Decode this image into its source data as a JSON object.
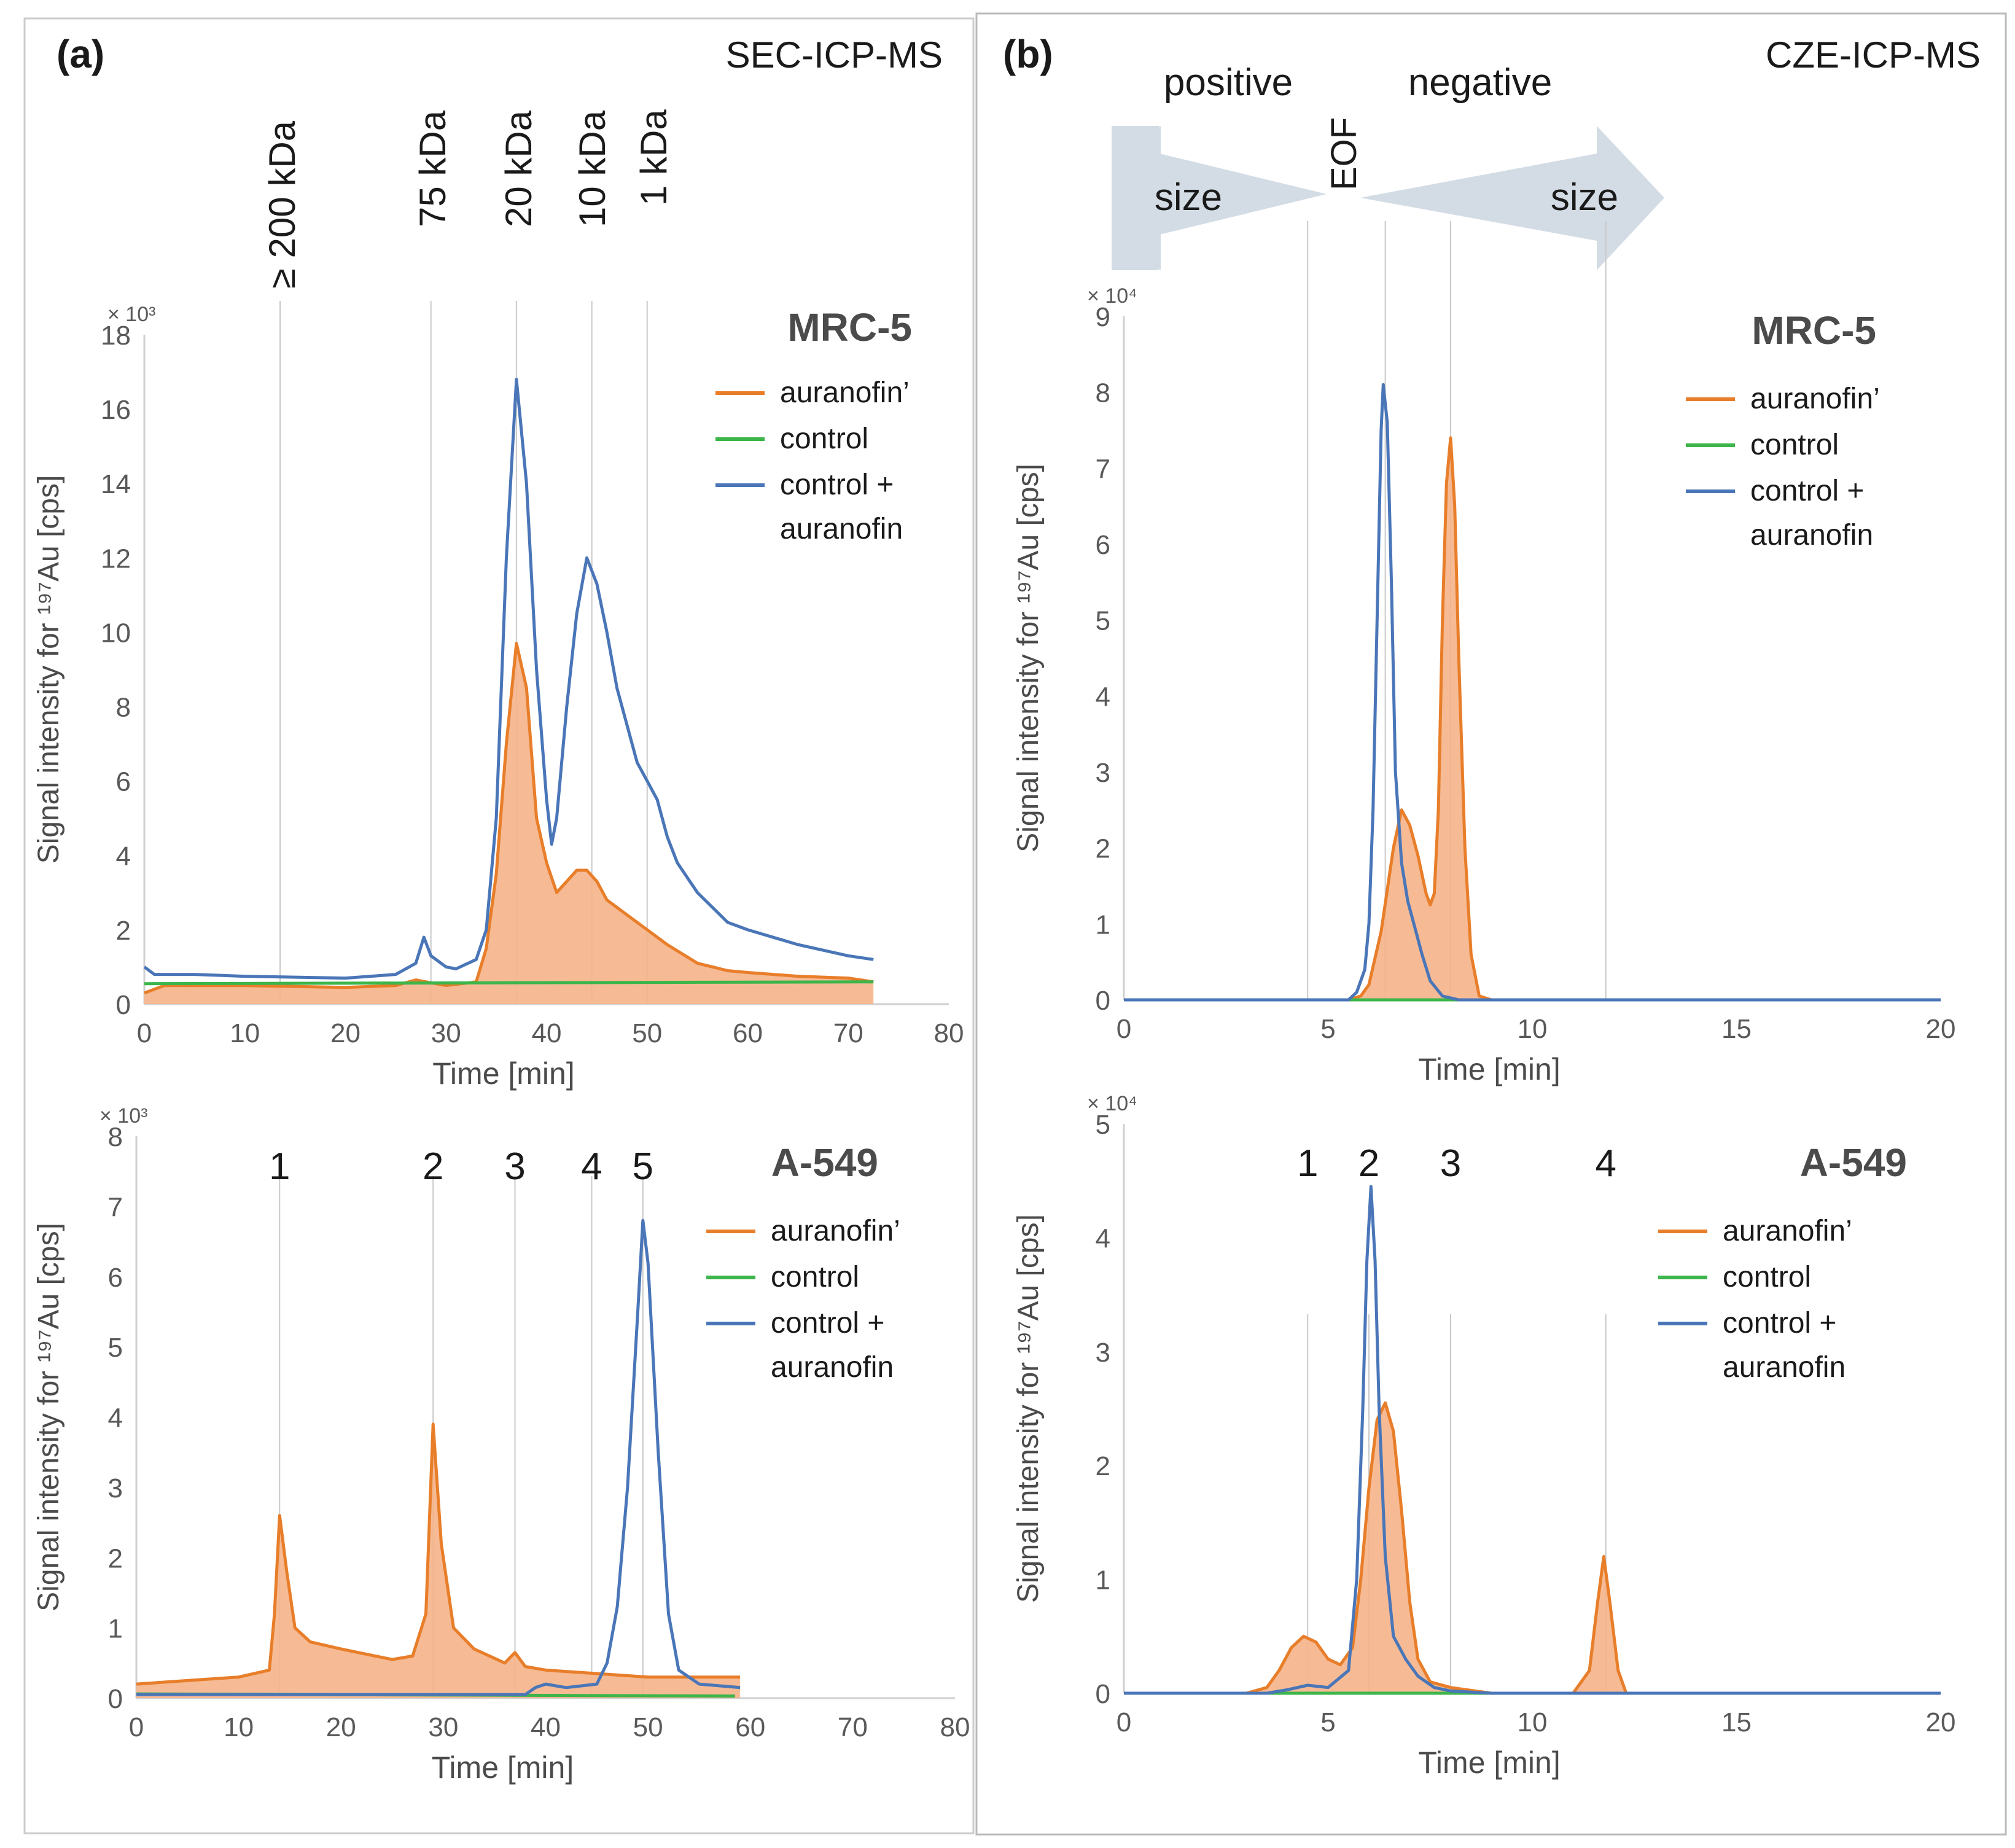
{
  "colors": {
    "orange": "#E87E2A",
    "orange_fill": "#F5B48A",
    "green": "#3CB54A",
    "blue": "#4A76B8",
    "grid": "#C9C9C9",
    "axis": "#D0D0D0",
    "text": "#1A1A1A",
    "tick": "#595959",
    "bold": "#4B4B4B",
    "arrow": "#D3DCE5"
  },
  "labels": {
    "panel_a": "(a)",
    "panel_b": "(b)",
    "method_a": "SEC-ICP-MS",
    "method_b": "CZE-ICP-MS",
    "positive": "positive",
    "negative": "negative",
    "eof": "EOF",
    "size": "size",
    "mw": [
      "≥ 200 kDa",
      "75 kDa",
      "20 kDa",
      "10 kDa",
      "1 kDa"
    ]
  },
  "chart_data": [
    {
      "id": "a_mrc5",
      "type": "line",
      "cell": "MRC-5",
      "method": "SEC-ICP-MS",
      "multiplier": "× 10³",
      "xlabel": "Time [min]",
      "ylabel": "Signal intensity for ¹⁹⁷Au [cps]",
      "xlim": [
        0,
        80
      ],
      "ylim": [
        0,
        18
      ],
      "xticks": [
        0,
        10,
        20,
        30,
        40,
        50,
        60,
        70,
        80
      ],
      "yticks": [
        0,
        2,
        4,
        6,
        8,
        10,
        12,
        14,
        16,
        18
      ],
      "vlines": [
        13.5,
        28.5,
        37,
        44.5,
        50
      ],
      "peak_numbers": [],
      "legend": [
        "auranofin’",
        "control",
        "control + auranofin"
      ],
      "series": [
        {
          "name": "auranofin’",
          "color": "orange",
          "fill": true,
          "points": [
            [
              0,
              0.3
            ],
            [
              2,
              0.5
            ],
            [
              10,
              0.5
            ],
            [
              20,
              0.45
            ],
            [
              25,
              0.5
            ],
            [
              27,
              0.65
            ],
            [
              28,
              0.6
            ],
            [
              30,
              0.5
            ],
            [
              33,
              0.6
            ],
            [
              34,
              1.5
            ],
            [
              35,
              3.5
            ],
            [
              36,
              7.0
            ],
            [
              37,
              9.7
            ],
            [
              38,
              8.5
            ],
            [
              39,
              5.0
            ],
            [
              40,
              3.8
            ],
            [
              41,
              3.0
            ],
            [
              42,
              3.3
            ],
            [
              43,
              3.6
            ],
            [
              44,
              3.6
            ],
            [
              45,
              3.3
            ],
            [
              46,
              2.8
            ],
            [
              48,
              2.4
            ],
            [
              50,
              2.0
            ],
            [
              52,
              1.6
            ],
            [
              55,
              1.1
            ],
            [
              58,
              0.9
            ],
            [
              60,
              0.85
            ],
            [
              65,
              0.75
            ],
            [
              70,
              0.7
            ],
            [
              72.5,
              0.6
            ]
          ]
        },
        {
          "name": "control",
          "color": "green",
          "fill": false,
          "points": [
            [
              0,
              0.55
            ],
            [
              72.5,
              0.6
            ]
          ]
        },
        {
          "name": "control + auranofin",
          "color": "blue",
          "fill": false,
          "points": [
            [
              0,
              1.0
            ],
            [
              1,
              0.8
            ],
            [
              5,
              0.8
            ],
            [
              10,
              0.75
            ],
            [
              20,
              0.7
            ],
            [
              25,
              0.8
            ],
            [
              27,
              1.1
            ],
            [
              27.8,
              1.8
            ],
            [
              28.5,
              1.3
            ],
            [
              30,
              1.0
            ],
            [
              31,
              0.95
            ],
            [
              33,
              1.2
            ],
            [
              34,
              2.0
            ],
            [
              35,
              5.0
            ],
            [
              36,
              12.0
            ],
            [
              37,
              16.8
            ],
            [
              38,
              14.0
            ],
            [
              39,
              9.0
            ],
            [
              40,
              5.5
            ],
            [
              40.5,
              4.3
            ],
            [
              41,
              5.0
            ],
            [
              42,
              8.0
            ],
            [
              43,
              10.5
            ],
            [
              44,
              12.0
            ],
            [
              45,
              11.3
            ],
            [
              46,
              10.0
            ],
            [
              47,
              8.5
            ],
            [
              48,
              7.5
            ],
            [
              49,
              6.5
            ],
            [
              50,
              6.0
            ],
            [
              51,
              5.5
            ],
            [
              52,
              4.5
            ],
            [
              53,
              3.8
            ],
            [
              55,
              3.0
            ],
            [
              58,
              2.2
            ],
            [
              60,
              2.0
            ],
            [
              65,
              1.6
            ],
            [
              70,
              1.3
            ],
            [
              72.5,
              1.2
            ]
          ]
        }
      ]
    },
    {
      "id": "a_a549",
      "type": "line",
      "cell": "A-549",
      "method": "SEC-ICP-MS",
      "multiplier": "× 10³",
      "xlabel": "Time [min]",
      "ylabel": "Signal intensity for ¹⁹⁷Au [cps]",
      "xlim": [
        0,
        80
      ],
      "ylim": [
        0,
        8
      ],
      "xticks": [
        0,
        10,
        20,
        30,
        40,
        50,
        60,
        70,
        80
      ],
      "yticks": [
        0,
        1,
        2,
        3,
        4,
        5,
        6,
        7,
        8
      ],
      "vlines": [
        14,
        29,
        37,
        44.5,
        49.5
      ],
      "peak_numbers": [
        "1",
        "2",
        "3",
        "4",
        "5"
      ],
      "legend": [
        "auranofin’",
        "control",
        "control + auranofin"
      ],
      "series": [
        {
          "name": "auranofin’",
          "color": "orange",
          "fill": true,
          "points": [
            [
              0,
              0.2
            ],
            [
              5,
              0.25
            ],
            [
              10,
              0.3
            ],
            [
              13,
              0.4
            ],
            [
              13.5,
              1.2
            ],
            [
              14,
              2.6
            ],
            [
              14.7,
              1.8
            ],
            [
              15.5,
              1.0
            ],
            [
              17,
              0.8
            ],
            [
              20,
              0.7
            ],
            [
              25,
              0.55
            ],
            [
              27,
              0.6
            ],
            [
              28.3,
              1.2
            ],
            [
              29,
              3.9
            ],
            [
              29.8,
              2.2
            ],
            [
              31,
              1.0
            ],
            [
              33,
              0.7
            ],
            [
              36,
              0.5
            ],
            [
              37,
              0.65
            ],
            [
              38,
              0.45
            ],
            [
              40,
              0.4
            ],
            [
              45,
              0.35
            ],
            [
              50,
              0.3
            ],
            [
              55,
              0.3
            ],
            [
              59,
              0.3
            ]
          ]
        },
        {
          "name": "control",
          "color": "green",
          "fill": false,
          "points": [
            [
              0,
              0.06
            ],
            [
              58.5,
              0.03
            ]
          ]
        },
        {
          "name": "control + auranofin",
          "color": "blue",
          "fill": false,
          "points": [
            [
              0,
              0.05
            ],
            [
              38,
              0.05
            ],
            [
              39,
              0.15
            ],
            [
              40,
              0.2
            ],
            [
              42,
              0.15
            ],
            [
              45,
              0.2
            ],
            [
              46,
              0.5
            ],
            [
              47,
              1.3
            ],
            [
              48,
              3.0
            ],
            [
              49,
              5.5
            ],
            [
              49.5,
              6.8
            ],
            [
              50,
              6.2
            ],
            [
              51,
              3.5
            ],
            [
              52,
              1.2
            ],
            [
              53,
              0.4
            ],
            [
              55,
              0.2
            ],
            [
              59,
              0.15
            ]
          ]
        }
      ]
    },
    {
      "id": "b_mrc5",
      "type": "line",
      "cell": "MRC-5",
      "method": "CZE-ICP-MS",
      "multiplier": "× 10⁴",
      "xlabel": "Time [min]",
      "ylabel": "Signal intensity for ¹⁹⁷Au [cps]",
      "xlim": [
        0,
        20
      ],
      "ylim": [
        0,
        9
      ],
      "xticks": [
        0,
        5,
        10,
        15,
        20
      ],
      "yticks": [
        0,
        1,
        2,
        3,
        4,
        5,
        6,
        7,
        8,
        9
      ],
      "vlines": [
        4.5,
        6.4,
        8.0,
        11.8
      ],
      "peak_numbers": [],
      "legend": [
        "auranofin’",
        "control",
        "control + auranofin"
      ],
      "series": [
        {
          "name": "auranofin’",
          "color": "orange",
          "fill": true,
          "points": [
            [
              0,
              0
            ],
            [
              5.5,
              0
            ],
            [
              5.8,
              0.05
            ],
            [
              6.0,
              0.2
            ],
            [
              6.3,
              0.9
            ],
            [
              6.6,
              2.0
            ],
            [
              6.8,
              2.5
            ],
            [
              7.0,
              2.3
            ],
            [
              7.2,
              1.9
            ],
            [
              7.4,
              1.4
            ],
            [
              7.5,
              1.25
            ],
            [
              7.6,
              1.4
            ],
            [
              7.7,
              2.5
            ],
            [
              7.8,
              5.0
            ],
            [
              7.9,
              6.8
            ],
            [
              8.0,
              7.4
            ],
            [
              8.1,
              6.5
            ],
            [
              8.2,
              4.5
            ],
            [
              8.35,
              2.0
            ],
            [
              8.5,
              0.6
            ],
            [
              8.7,
              0.05
            ],
            [
              9,
              0
            ],
            [
              20,
              0
            ]
          ]
        },
        {
          "name": "control",
          "color": "green",
          "fill": false,
          "points": [
            [
              0,
              0
            ],
            [
              20,
              0
            ]
          ]
        },
        {
          "name": "control + auranofin",
          "color": "blue",
          "fill": false,
          "points": [
            [
              0,
              0
            ],
            [
              5.5,
              0
            ],
            [
              5.7,
              0.1
            ],
            [
              5.9,
              0.4
            ],
            [
              6.0,
              1.0
            ],
            [
              6.1,
              2.5
            ],
            [
              6.2,
              5.0
            ],
            [
              6.3,
              7.5
            ],
            [
              6.35,
              8.1
            ],
            [
              6.45,
              7.6
            ],
            [
              6.55,
              5.5
            ],
            [
              6.65,
              3.0
            ],
            [
              6.8,
              1.8
            ],
            [
              6.95,
              1.3
            ],
            [
              7.1,
              1.0
            ],
            [
              7.3,
              0.6
            ],
            [
              7.5,
              0.25
            ],
            [
              7.8,
              0.05
            ],
            [
              8.2,
              0
            ],
            [
              20,
              0
            ]
          ]
        }
      ]
    },
    {
      "id": "b_a549",
      "type": "line",
      "cell": "A-549",
      "method": "CZE-ICP-MS",
      "multiplier": "× 10⁴",
      "xlabel": "Time [min]",
      "ylabel": "Signal intensity for ¹⁹⁷Au [cps]",
      "xlim": [
        0,
        20
      ],
      "ylim": [
        0,
        5
      ],
      "xticks": [
        0,
        5,
        10,
        15,
        20
      ],
      "yticks": [
        0,
        1,
        2,
        3,
        4,
        5
      ],
      "vlines": [
        4.5,
        6.0,
        8.0,
        11.8
      ],
      "peak_numbers": [
        "1",
        "2",
        "3",
        "4"
      ],
      "legend": [
        "auranofin’",
        "control",
        "control + auranofin"
      ],
      "series": [
        {
          "name": "auranofin’",
          "color": "orange",
          "fill": true,
          "points": [
            [
              0,
              0
            ],
            [
              3.0,
              0
            ],
            [
              3.5,
              0.05
            ],
            [
              3.8,
              0.2
            ],
            [
              4.1,
              0.4
            ],
            [
              4.4,
              0.5
            ],
            [
              4.7,
              0.45
            ],
            [
              5.0,
              0.3
            ],
            [
              5.3,
              0.25
            ],
            [
              5.6,
              0.4
            ],
            [
              5.8,
              1.0
            ],
            [
              6.0,
              1.8
            ],
            [
              6.2,
              2.4
            ],
            [
              6.4,
              2.55
            ],
            [
              6.6,
              2.3
            ],
            [
              6.8,
              1.6
            ],
            [
              7.0,
              0.8
            ],
            [
              7.2,
              0.3
            ],
            [
              7.5,
              0.1
            ],
            [
              8.0,
              0.05
            ],
            [
              9.0,
              0
            ],
            [
              11.0,
              0
            ],
            [
              11.4,
              0.2
            ],
            [
              11.6,
              0.8
            ],
            [
              11.75,
              1.2
            ],
            [
              11.9,
              0.8
            ],
            [
              12.1,
              0.2
            ],
            [
              12.3,
              0
            ],
            [
              20,
              0
            ]
          ]
        },
        {
          "name": "control",
          "color": "green",
          "fill": false,
          "points": [
            [
              0,
              0
            ],
            [
              20,
              0
            ]
          ]
        },
        {
          "name": "control + auranofin",
          "color": "blue",
          "fill": false,
          "points": [
            [
              0,
              0
            ],
            [
              3.5,
              0
            ],
            [
              4.0,
              0.03
            ],
            [
              4.5,
              0.07
            ],
            [
              5.0,
              0.05
            ],
            [
              5.5,
              0.2
            ],
            [
              5.7,
              1.0
            ],
            [
              5.85,
              2.5
            ],
            [
              5.95,
              3.8
            ],
            [
              6.05,
              4.45
            ],
            [
              6.15,
              3.8
            ],
            [
              6.25,
              2.5
            ],
            [
              6.4,
              1.2
            ],
            [
              6.6,
              0.5
            ],
            [
              6.9,
              0.3
            ],
            [
              7.2,
              0.15
            ],
            [
              7.6,
              0.05
            ],
            [
              8.0,
              0.02
            ],
            [
              9.0,
              0
            ],
            [
              20,
              0
            ]
          ]
        }
      ]
    }
  ]
}
